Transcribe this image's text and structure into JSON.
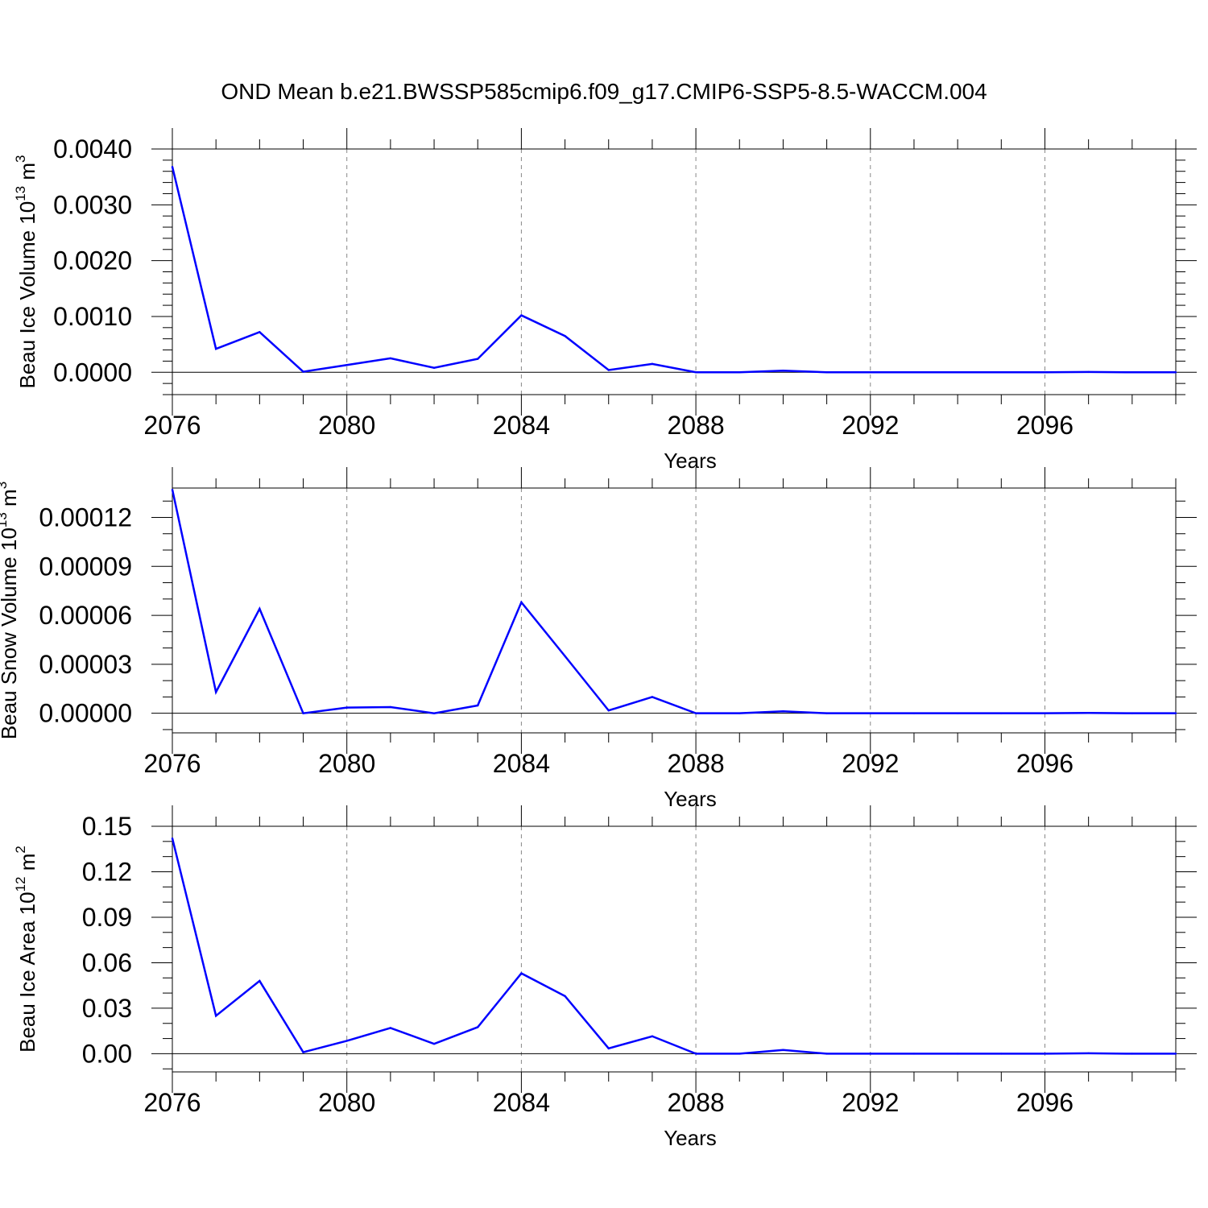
{
  "title": "OND Mean b.e21.BWSSP585cmip6.f09_g17.CMIP6-SSP5-8.5-WACCM.004",
  "colors": {
    "line": "#0000ff",
    "axis": "#000000",
    "grid": "#888888"
  },
  "chart_data": [
    {
      "type": "line",
      "ylabel": "Beau Ice Volume 10",
      "ylabel_exp": "13",
      "ylabel_unit": " m",
      "ylabel_unit_exp": "3",
      "xlabel": "Years",
      "xlim": [
        2076,
        2099
      ],
      "ylim": [
        -0.0004,
        0.004
      ],
      "yticks": [
        0,
        0.001,
        0.002,
        0.003,
        0.004
      ],
      "ytick_labels": [
        "0.0000",
        "0.0010",
        "0.0020",
        "0.0030",
        "0.0040"
      ],
      "yminor_step": 0.0002,
      "xticks": [
        2076,
        2080,
        2084,
        2088,
        2092,
        2096
      ],
      "xtick_labels": [
        "2076",
        "2080",
        "2084",
        "2088",
        "2092",
        "2096"
      ],
      "x": [
        2076,
        2077,
        2078,
        2079,
        2080,
        2081,
        2082,
        2083,
        2084,
        2085,
        2086,
        2087,
        2088,
        2089,
        2090,
        2091,
        2092,
        2093,
        2094,
        2095,
        2096,
        2097,
        2098,
        2099
      ],
      "values": [
        0.00368,
        0.00042,
        0.00072,
        1e-05,
        0.00013,
        0.00025,
        8e-05,
        0.00024,
        0.00102,
        0.00065,
        4e-05,
        0.00015,
        0.0,
        0.0,
        3e-05,
        0.0,
        0.0,
        0.0,
        0.0,
        0.0,
        0.0,
        5e-06,
        0.0,
        0.0
      ]
    },
    {
      "type": "line",
      "ylabel": "Beau Snow Volume 10",
      "ylabel_exp": "13",
      "ylabel_unit": " m",
      "ylabel_unit_exp": "3",
      "xlabel": "Years",
      "xlim": [
        2076,
        2099
      ],
      "ylim": [
        -1.2e-05,
        0.000138
      ],
      "yticks": [
        0,
        3e-05,
        6e-05,
        9e-05,
        0.00012
      ],
      "ytick_labels": [
        "0.00000",
        "0.00003",
        "0.00006",
        "0.00009",
        "0.00012"
      ],
      "yminor_step": 1e-05,
      "xticks": [
        2076,
        2080,
        2084,
        2088,
        2092,
        2096
      ],
      "xtick_labels": [
        "2076",
        "2080",
        "2084",
        "2088",
        "2092",
        "2096"
      ],
      "x": [
        2076,
        2077,
        2078,
        2079,
        2080,
        2081,
        2082,
        2083,
        2084,
        2085,
        2086,
        2087,
        2088,
        2089,
        2090,
        2091,
        2092,
        2093,
        2094,
        2095,
        2096,
        2097,
        2098,
        2099
      ],
      "values": [
        0.000137,
        1.3e-05,
        6.4e-05,
        0.0,
        3.5e-06,
        3.8e-06,
        0.0,
        4.8e-06,
        6.8e-05,
        3.5e-05,
        1.7e-06,
        1e-05,
        0.0,
        0.0,
        1.2e-06,
        0.0,
        0.0,
        0.0,
        0.0,
        0.0,
        0.0,
        2e-07,
        0.0,
        0.0
      ]
    },
    {
      "type": "line",
      "ylabel": "Beau Ice Area 10",
      "ylabel_exp": "12",
      "ylabel_unit": " m",
      "ylabel_unit_exp": "2",
      "xlabel": "Years",
      "xlim": [
        2076,
        2099
      ],
      "ylim": [
        -0.012,
        0.15
      ],
      "yticks": [
        0,
        0.03,
        0.06,
        0.09,
        0.12,
        0.15
      ],
      "ytick_labels": [
        "0.00",
        "0.03",
        "0.06",
        "0.09",
        "0.12",
        "0.15"
      ],
      "yminor_step": 0.01,
      "xticks": [
        2076,
        2080,
        2084,
        2088,
        2092,
        2096
      ],
      "xtick_labels": [
        "2076",
        "2080",
        "2084",
        "2088",
        "2092",
        "2096"
      ],
      "x": [
        2076,
        2077,
        2078,
        2079,
        2080,
        2081,
        2082,
        2083,
        2084,
        2085,
        2086,
        2087,
        2088,
        2089,
        2090,
        2091,
        2092,
        2093,
        2094,
        2095,
        2096,
        2097,
        2098,
        2099
      ],
      "values": [
        0.142,
        0.025,
        0.048,
        0.001,
        0.0085,
        0.017,
        0.0065,
        0.0175,
        0.053,
        0.038,
        0.0035,
        0.0115,
        0.0,
        0.0,
        0.0025,
        0.0,
        0.0,
        0.0,
        0.0,
        0.0,
        0.0,
        0.0003,
        0.0,
        0.0
      ]
    }
  ]
}
